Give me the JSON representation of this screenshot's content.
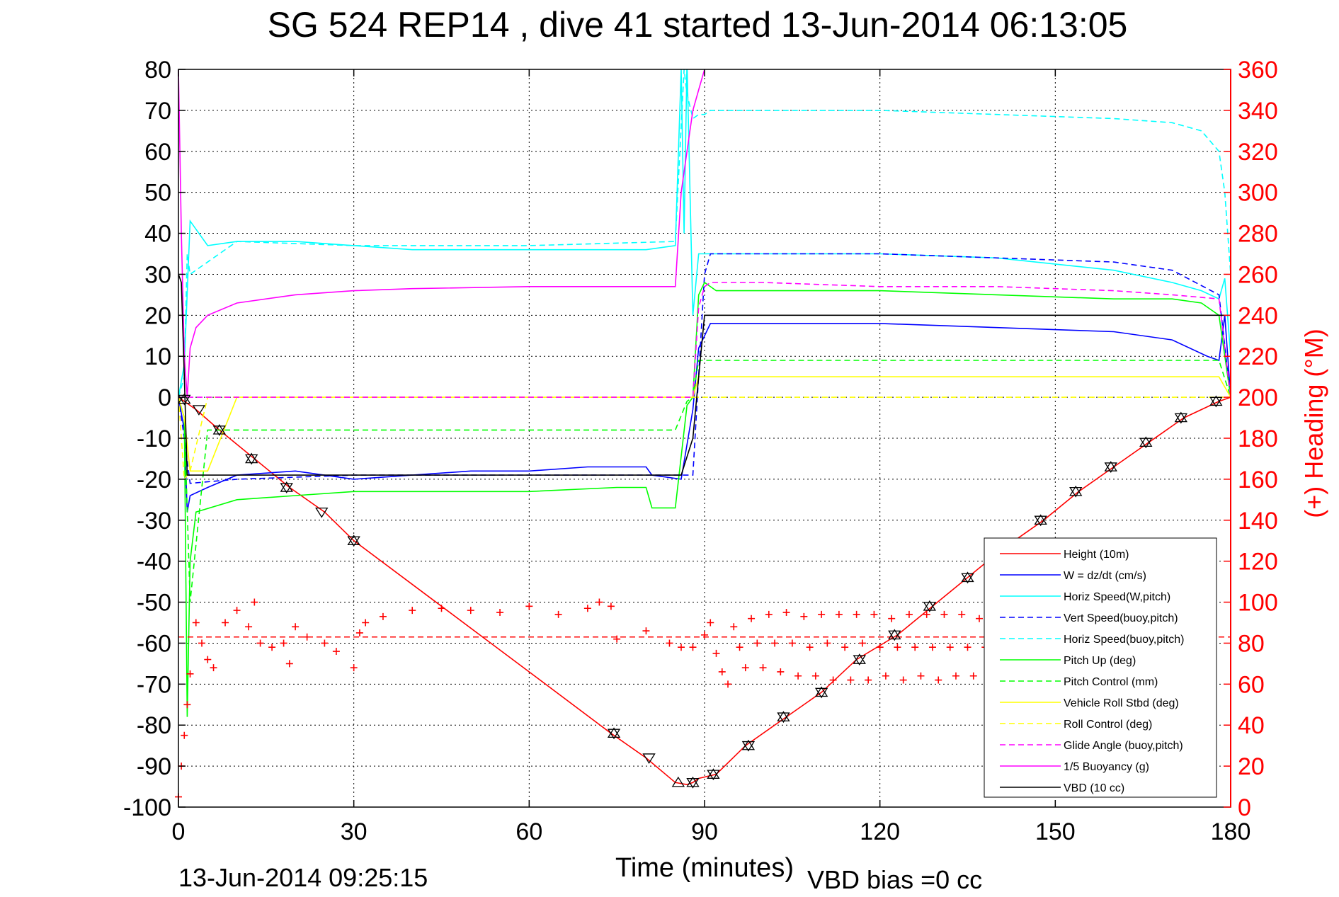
{
  "chart_data": {
    "type": "line",
    "title": "SG 524   REP14  , dive 41 started 13-Jun-2014 06:13:05",
    "xlabel": "Time (minutes)",
    "ylabel": "",
    "ylabel_right": "(+) Heading (°M)",
    "xlim": [
      0,
      180
    ],
    "ylim": [
      -100,
      80
    ],
    "ylim_right": [
      0,
      360
    ],
    "x_ticks": [
      "0",
      "30",
      "60",
      "90",
      "120",
      "150",
      "180"
    ],
    "y_ticks": [
      "80",
      "70",
      "60",
      "50",
      "40",
      "30",
      "20",
      "10",
      "0",
      "-10",
      "-20",
      "-30",
      "-40",
      "-50",
      "-60",
      "-70",
      "-80",
      "-90",
      "-100"
    ],
    "y_ticks_right": [
      "360",
      "340",
      "320",
      "300",
      "280",
      "260",
      "240",
      "220",
      "200",
      "180",
      "160",
      "140",
      "120",
      "100",
      "80",
      "60",
      "40",
      "20",
      "0"
    ],
    "grid": true,
    "legend_position": "bottom-right",
    "footer_left": "13-Jun-2014 09:25:15",
    "footer_right": "VBD bias =0 cc",
    "series": [
      {
        "name": "Height (10m)",
        "color": "#ff0000",
        "style": "solid",
        "x": [
          0,
          1,
          3,
          7,
          13,
          19,
          25,
          30,
          45,
          60,
          74,
          80,
          85,
          87,
          88,
          89,
          92,
          97,
          104,
          110,
          116,
          123,
          129,
          135,
          141,
          148,
          154,
          160,
          166,
          172,
          178,
          180
        ],
        "y": [
          0,
          -1,
          -3,
          -8,
          -15,
          -22,
          -28,
          -35,
          -51,
          -67,
          -82,
          -88,
          -94,
          -94.5,
          -94,
          -93,
          -92,
          -85,
          -78,
          -72,
          -64,
          -58,
          -51,
          -44,
          -37,
          -30,
          -23,
          -17,
          -11,
          -5,
          -1,
          0
        ]
      },
      {
        "name": "W = dz/dt (cm/s)",
        "color": "#0000ff",
        "style": "solid",
        "x": [
          0,
          1,
          1.5,
          2,
          5,
          10,
          20,
          30,
          40,
          50,
          60,
          70,
          80,
          81,
          86,
          88,
          89,
          91,
          100,
          120,
          140,
          160,
          170,
          176,
          178,
          179,
          180
        ],
        "y": [
          0,
          -8,
          -28,
          -24,
          -22,
          -19,
          -18,
          -20,
          -19,
          -18,
          -18,
          -17,
          -17,
          -19,
          -20,
          -3,
          12,
          18,
          18,
          18,
          17,
          16,
          14,
          10,
          9,
          20,
          0
        ]
      },
      {
        "name": "Horiz Speed(W,pitch)",
        "color": "#00ffff",
        "style": "solid",
        "x": [
          0,
          1,
          2,
          5,
          10,
          20,
          30,
          40,
          50,
          60,
          70,
          80,
          85,
          86,
          86.5,
          87,
          88,
          89,
          91,
          100,
          120,
          140,
          160,
          170,
          175,
          178,
          179,
          180
        ],
        "y": [
          0,
          8,
          43,
          37,
          38,
          38,
          37,
          36,
          36,
          36,
          36,
          36,
          37,
          80,
          40,
          82,
          20,
          35,
          35,
          35,
          35,
          34,
          31,
          28,
          26,
          24,
          29,
          10
        ]
      },
      {
        "name": "Vert Speed(buoy,pitch)",
        "color": "#0000ff",
        "style": "dashed",
        "x": [
          0,
          1,
          2,
          10,
          30,
          60,
          85,
          88,
          90,
          91,
          100,
          120,
          140,
          160,
          170,
          178,
          180
        ],
        "y": [
          0,
          -10,
          -21,
          -20,
          -19,
          -19,
          -19,
          -19,
          30,
          35,
          35,
          35,
          34,
          33,
          31,
          25,
          0
        ]
      },
      {
        "name": "Horiz Speed(buoy,pitch)",
        "color": "#00ffff",
        "style": "dashed",
        "x": [
          0,
          1,
          1.5,
          2,
          10,
          30,
          60,
          85,
          86.5,
          87,
          88,
          89,
          90,
          91,
          100,
          120,
          140,
          160,
          170,
          175,
          178,
          179,
          180
        ],
        "y": [
          0,
          5,
          35,
          30,
          38,
          37,
          37,
          38,
          80,
          74,
          68,
          69,
          69,
          70,
          70,
          70,
          69,
          68,
          67,
          65,
          60,
          50,
          30
        ]
      },
      {
        "name": "Pitch Up (deg)",
        "color": "#00ff00",
        "style": "solid",
        "x": [
          0,
          1,
          1.5,
          2,
          3,
          10,
          20,
          30,
          40,
          60,
          75,
          80,
          81,
          85,
          87,
          88,
          89,
          90,
          92,
          100,
          120,
          140,
          160,
          170,
          175,
          178,
          180
        ],
        "y": [
          0,
          -5,
          -78,
          -40,
          -28,
          -25,
          -24,
          -23,
          -23,
          -23,
          -22,
          -22,
          -27,
          -27,
          -2,
          0,
          25,
          28,
          26,
          26,
          26,
          25,
          24,
          24,
          23,
          20,
          0
        ]
      },
      {
        "name": "Pitch Control (mm)",
        "color": "#00ff00",
        "style": "dashed",
        "x": [
          0,
          1,
          2,
          5,
          10,
          25,
          30,
          80,
          85,
          87,
          88,
          89,
          90,
          91,
          100,
          140,
          170,
          178,
          180
        ],
        "y": [
          0,
          -5,
          -50,
          -8,
          -8,
          -8,
          -8,
          -8,
          -8,
          -1,
          0,
          9,
          9,
          9,
          9,
          9,
          9,
          9,
          0
        ]
      },
      {
        "name": "Vehicle Roll Stbd (deg)",
        "color": "#ffff00",
        "style": "solid",
        "x": [
          0,
          1,
          2,
          5,
          10,
          30,
          60,
          85,
          88,
          89,
          90,
          91,
          100,
          140,
          170,
          178,
          180
        ],
        "y": [
          0,
          -5,
          -18,
          -18,
          0,
          0,
          0,
          0,
          0,
          5,
          5,
          5,
          5,
          5,
          5,
          5,
          0
        ]
      },
      {
        "name": "Roll Control (deg)",
        "color": "#ffff00",
        "style": "dashed",
        "x": [
          0,
          1,
          2,
          5,
          30,
          60,
          85,
          88,
          89,
          90,
          100,
          140,
          170,
          178,
          180
        ],
        "y": [
          0,
          -20,
          -18,
          0,
          0,
          0,
          0,
          0,
          0,
          0,
          0,
          0,
          0,
          0,
          0
        ]
      },
      {
        "name": "Glide Angle (buoy,pitch)",
        "color": "#ff00ff",
        "style": "dashed",
        "x": [
          0,
          1,
          30,
          60,
          86,
          88,
          89,
          90,
          91,
          100,
          120,
          140,
          160,
          170,
          178,
          180
        ],
        "y": [
          0,
          0,
          0,
          0,
          0,
          0,
          22,
          27,
          28,
          28,
          27,
          27,
          26,
          25,
          24,
          0
        ]
      },
      {
        "name": "1/5 Buoyancy (g)",
        "color": "#ff00ff",
        "style": "solid",
        "x": [
          0,
          0.5,
          1,
          1.5,
          2,
          3,
          5,
          10,
          20,
          30,
          40,
          60,
          75,
          85,
          86,
          87,
          88,
          89,
          90
        ],
        "y": [
          80,
          40,
          10,
          0,
          12,
          17,
          20,
          23,
          25,
          26,
          26.5,
          27,
          27,
          27,
          50,
          60,
          70,
          75,
          80
        ]
      },
      {
        "name": "VBD (10 cc)",
        "color": "#000000",
        "style": "solid",
        "x": [
          0,
          0.5,
          1,
          1.5,
          10,
          30,
          60,
          85,
          86,
          88,
          89,
          90,
          91,
          100,
          140,
          170,
          178,
          180
        ],
        "y": [
          30,
          28,
          5,
          -19,
          -19,
          -19,
          -19,
          -19,
          -19,
          -10,
          5,
          20,
          20,
          20,
          20,
          20,
          20,
          20
        ]
      }
    ],
    "heading_series": {
      "axis": "right",
      "color": "#ff0000",
      "marker": "+",
      "mean_heading": 83,
      "x": [
        0,
        0.5,
        1,
        1.5,
        2,
        3,
        4,
        5,
        6,
        8,
        10,
        12,
        13,
        14,
        16,
        18,
        19,
        20,
        22,
        25,
        27,
        30,
        31,
        32,
        35,
        40,
        45,
        50,
        55,
        60,
        65,
        70,
        72,
        74,
        75,
        80,
        84,
        86,
        88,
        90,
        91,
        92,
        93,
        94,
        95,
        96,
        97,
        98,
        99,
        100,
        101,
        102,
        103,
        104,
        105,
        106,
        107,
        108,
        109,
        110,
        111,
        112,
        113,
        114,
        115,
        116,
        117,
        118,
        119,
        120,
        121,
        122,
        123,
        124,
        125,
        126,
        127,
        128,
        129,
        130,
        131,
        132,
        133,
        134,
        135,
        136,
        137,
        138,
        139,
        140
      ],
      "y": [
        5,
        20,
        35,
        50,
        65,
        90,
        80,
        72,
        68,
        90,
        96,
        88,
        100,
        80,
        78,
        80,
        70,
        88,
        83,
        80,
        76,
        68,
        85,
        90,
        93,
        96,
        97,
        96,
        95,
        98,
        94,
        97,
        100,
        98,
        82,
        86,
        80,
        78,
        78,
        84,
        90,
        75,
        66,
        60,
        88,
        78,
        68,
        92,
        80,
        68,
        94,
        80,
        66,
        95,
        80,
        64,
        93,
        78,
        64,
        94,
        80,
        62,
        94,
        78,
        62,
        94,
        80,
        62,
        94,
        78,
        64,
        92,
        78,
        62,
        94,
        78,
        64,
        94,
        78,
        62,
        94,
        78,
        64,
        94,
        78,
        64,
        92,
        78,
        64,
        70
      ]
    },
    "markers": {
      "color": "#000000",
      "points": [
        {
          "t": 1,
          "h": -0.5,
          "shape": "both"
        },
        {
          "t": 3.5,
          "h": -3,
          "shape": "down"
        },
        {
          "t": 7,
          "h": -8,
          "shape": "both"
        },
        {
          "t": 12.5,
          "h": -15,
          "shape": "both"
        },
        {
          "t": 18.5,
          "h": -22,
          "shape": "both"
        },
        {
          "t": 24.5,
          "h": -28,
          "shape": "down"
        },
        {
          "t": 30,
          "h": -35,
          "shape": "both"
        },
        {
          "t": 74.5,
          "h": -82,
          "shape": "both"
        },
        {
          "t": 80.5,
          "h": -88,
          "shape": "down"
        },
        {
          "t": 85.5,
          "h": -94,
          "shape": "up"
        },
        {
          "t": 88,
          "h": -94,
          "shape": "both"
        },
        {
          "t": 91.5,
          "h": -92,
          "shape": "both"
        },
        {
          "t": 97.5,
          "h": -85,
          "shape": "both"
        },
        {
          "t": 103.5,
          "h": -78,
          "shape": "both"
        },
        {
          "t": 110,
          "h": -72,
          "shape": "both"
        },
        {
          "t": 116.5,
          "h": -64,
          "shape": "both"
        },
        {
          "t": 122.5,
          "h": -58,
          "shape": "both"
        },
        {
          "t": 128.5,
          "h": -51,
          "shape": "both"
        },
        {
          "t": 135,
          "h": -44,
          "shape": "both"
        },
        {
          "t": 147.5,
          "h": -30,
          "shape": "both"
        },
        {
          "t": 153.5,
          "h": -23,
          "shape": "both"
        },
        {
          "t": 159.5,
          "h": -17,
          "shape": "both"
        },
        {
          "t": 165.5,
          "h": -11,
          "shape": "both"
        },
        {
          "t": 171.5,
          "h": -5,
          "shape": "both"
        },
        {
          "t": 177.5,
          "h": -1,
          "shape": "both"
        }
      ]
    }
  }
}
